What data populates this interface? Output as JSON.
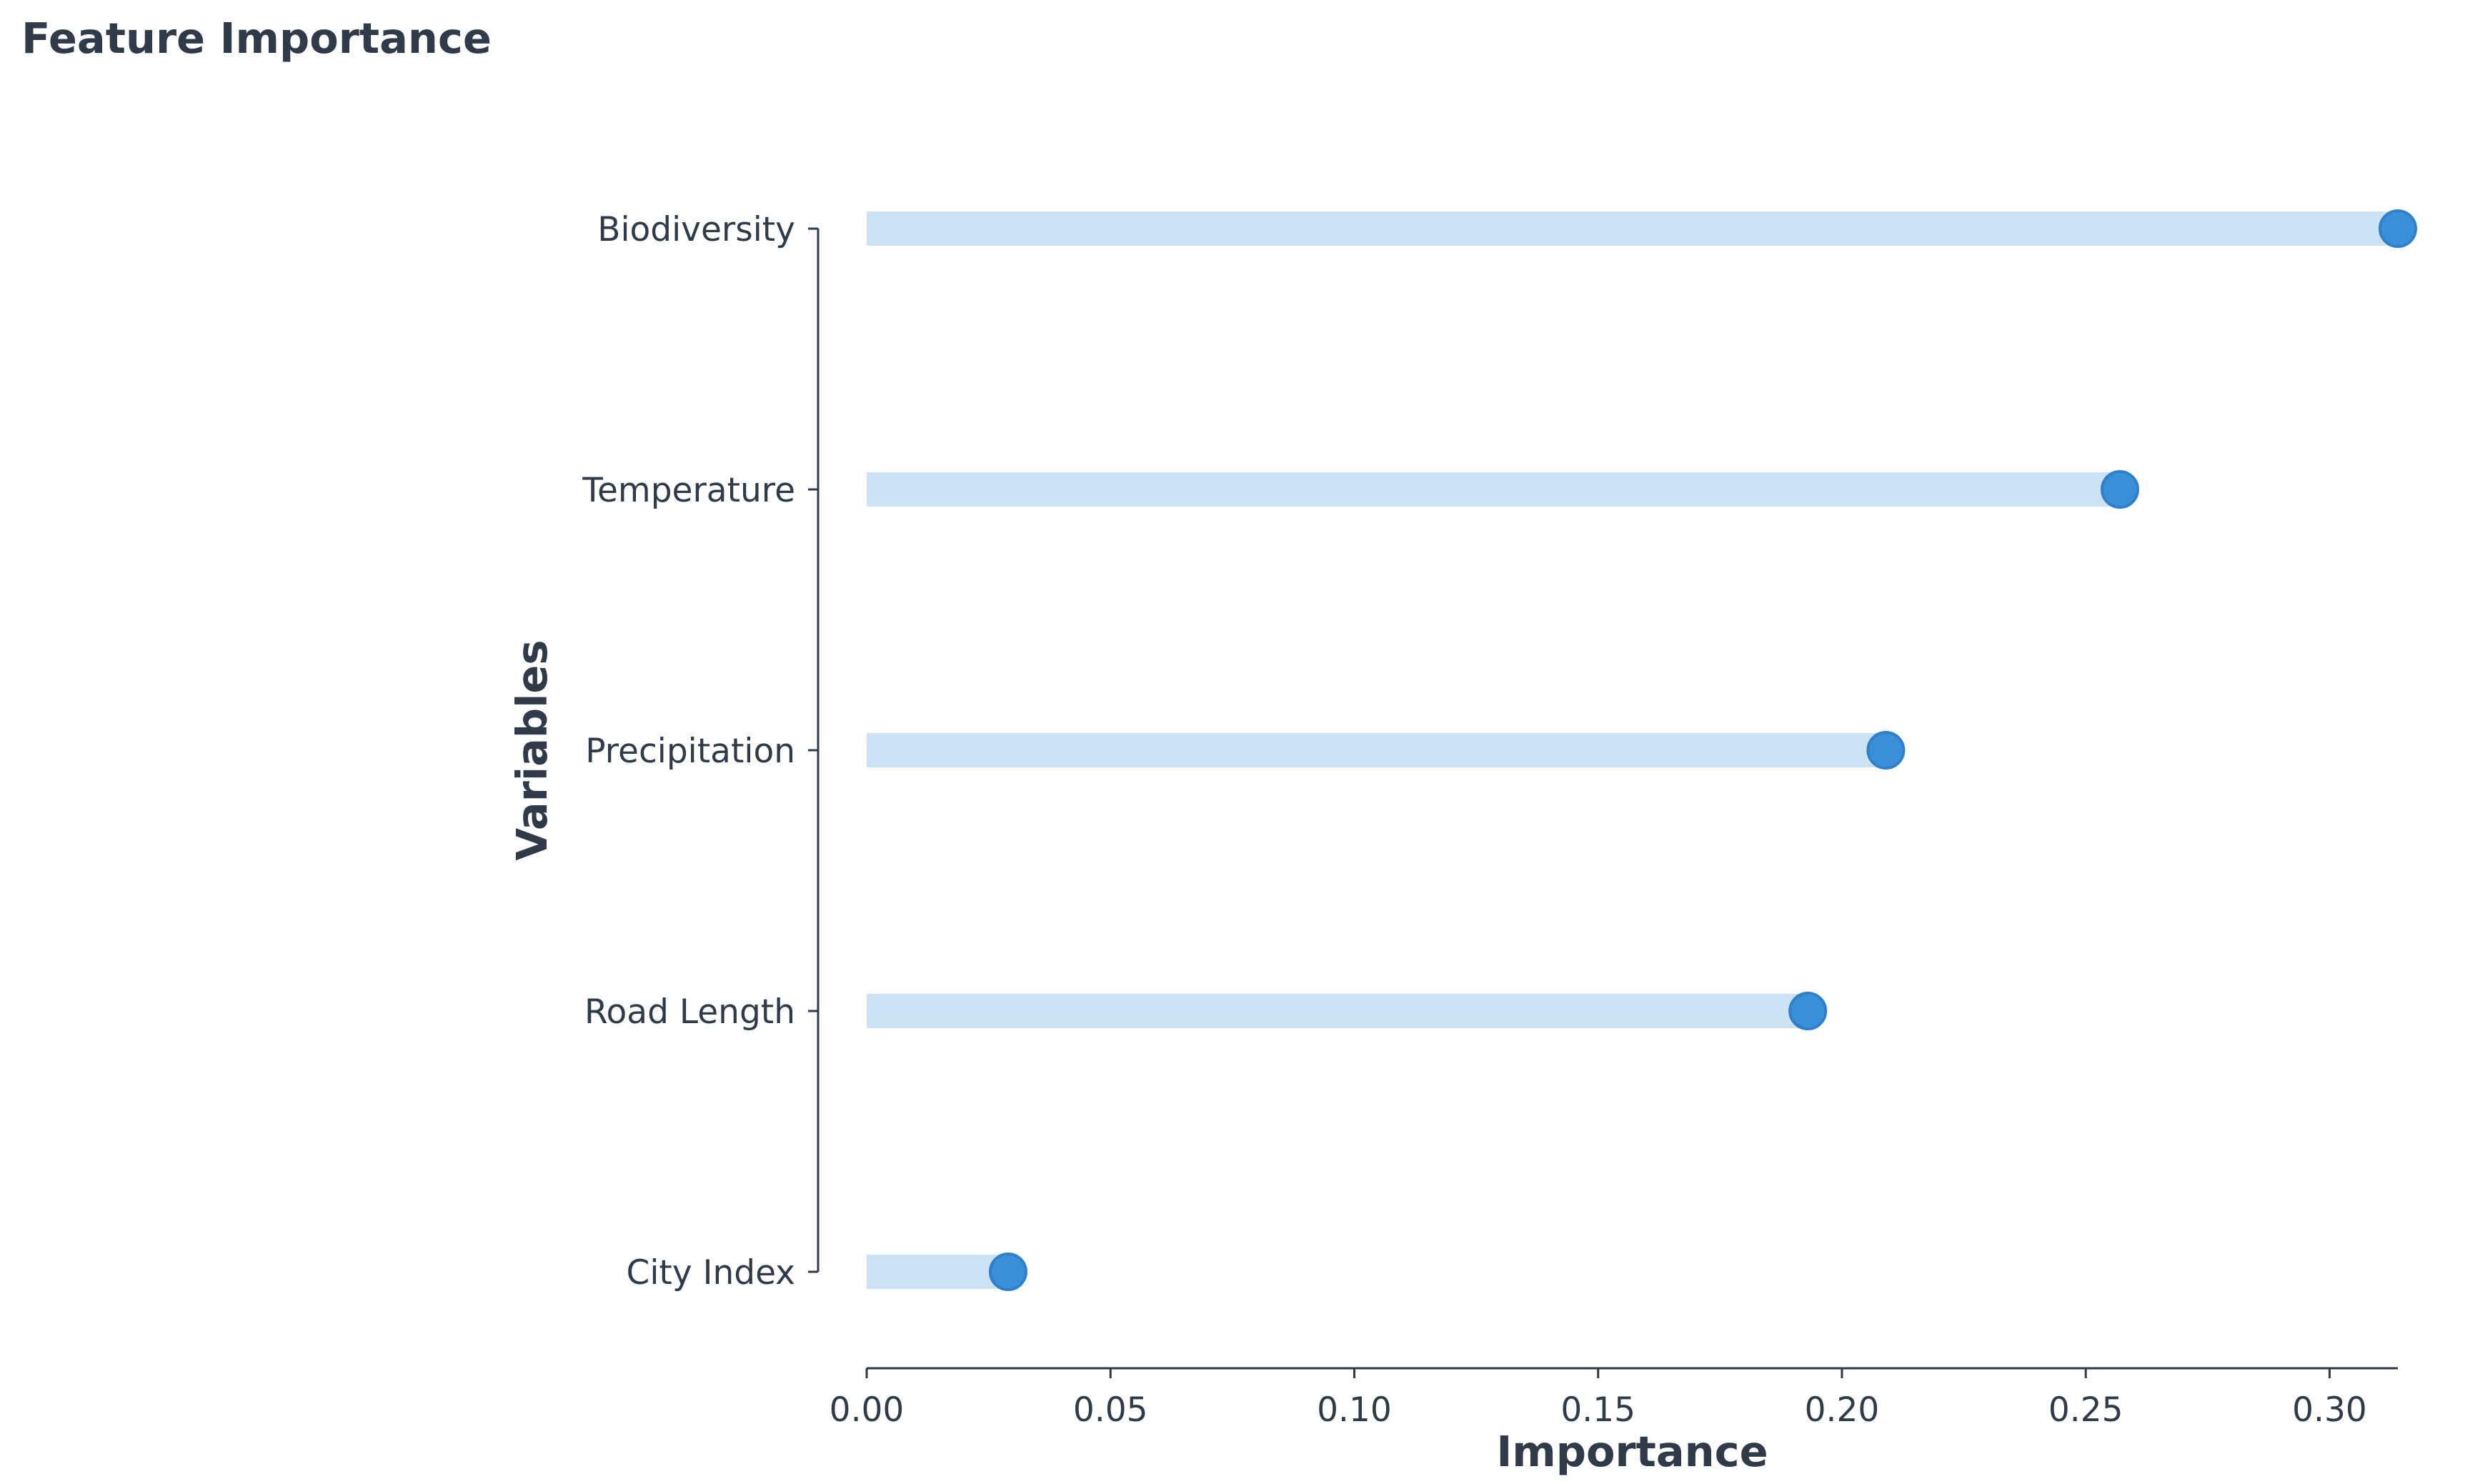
{
  "chart_data": {
    "type": "lollipop",
    "title": "Feature Importance",
    "xlabel": "Importance",
    "ylabel": "Variables",
    "categories": [
      "Biodiversity",
      "Temperature",
      "Precipitation",
      "Road Length",
      "City Index"
    ],
    "values": [
      0.314,
      0.257,
      0.209,
      0.193,
      0.029
    ],
    "xlim": [
      0.0,
      0.314
    ],
    "xticks": [
      0.0,
      0.05,
      0.1,
      0.15,
      0.2,
      0.25,
      0.3
    ],
    "xtick_labels": [
      "0.00",
      "0.05",
      "0.10",
      "0.15",
      "0.20",
      "0.25",
      "0.30"
    ],
    "grid": false,
    "legend": "none",
    "colors": {
      "stem": "#cde2f3",
      "marker": "#3a8fd9",
      "marker_edge": "#2f80c9",
      "text": "#2f3b48",
      "axis": "#2f3b48"
    }
  }
}
